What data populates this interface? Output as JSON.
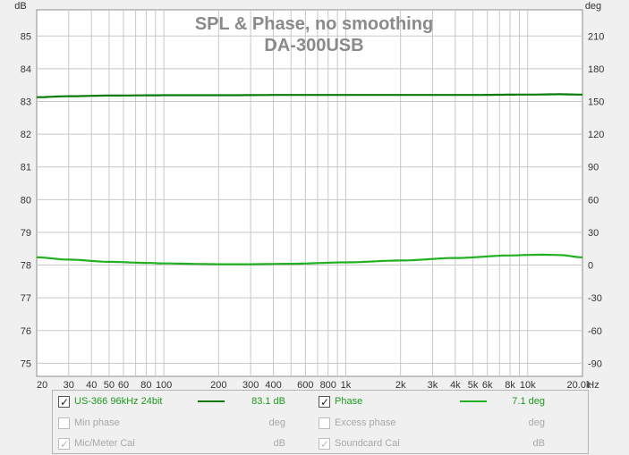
{
  "chart_data": {
    "type": "line",
    "title": "SPL & Phase, no smoothing",
    "subtitle": "DA-300USB",
    "y_left_label": "dB",
    "y_right_label": "deg",
    "x_unit_label": "Hz",
    "x_scale": "log",
    "xlim": [
      20,
      20000
    ],
    "ylim_left": [
      74.6,
      85.8
    ],
    "ylim_right": [
      -102,
      234
    ],
    "x_ticks": [
      {
        "value": 20,
        "label": "20"
      },
      {
        "value": 30,
        "label": "30"
      },
      {
        "value": 40,
        "label": "40"
      },
      {
        "value": 50,
        "label": "50"
      },
      {
        "value": 60,
        "label": "60"
      },
      {
        "value": 80,
        "label": "80"
      },
      {
        "value": 100,
        "label": "100"
      },
      {
        "value": 200,
        "label": "200"
      },
      {
        "value": 300,
        "label": "300"
      },
      {
        "value": 400,
        "label": "400"
      },
      {
        "value": 600,
        "label": "600"
      },
      {
        "value": 800,
        "label": "800"
      },
      {
        "value": 1000,
        "label": "1k"
      },
      {
        "value": 2000,
        "label": "2k"
      },
      {
        "value": 3000,
        "label": "3k"
      },
      {
        "value": 4000,
        "label": "4k"
      },
      {
        "value": 5000,
        "label": "5k"
      },
      {
        "value": 6000,
        "label": "6k"
      },
      {
        "value": 8000,
        "label": "8k"
      },
      {
        "value": 10000,
        "label": "10k"
      },
      {
        "value": 20000,
        "label": "20.0k"
      }
    ],
    "y_left_ticks": [
      75,
      76,
      77,
      78,
      79,
      80,
      81,
      82,
      83,
      84,
      85
    ],
    "y_right_ticks": [
      -90,
      -60,
      -30,
      0,
      30,
      60,
      90,
      120,
      150,
      180,
      210
    ],
    "grid": true,
    "series": [
      {
        "name": "US-366 96kHz 24bit",
        "axis": "left",
        "color": "#0a7a0a",
        "x": [
          20,
          30,
          50,
          100,
          200,
          500,
          1000,
          2000,
          5000,
          10000,
          15000,
          20000
        ],
        "y": [
          83.13,
          83.16,
          83.18,
          83.19,
          83.19,
          83.2,
          83.2,
          83.2,
          83.2,
          83.21,
          83.22,
          83.21
        ]
      },
      {
        "name": "Phase",
        "axis": "right",
        "color": "#22b022",
        "x": [
          20,
          30,
          50,
          80,
          100,
          200,
          300,
          500,
          1000,
          2000,
          4000,
          8000,
          10000,
          12000,
          15000,
          20000
        ],
        "y": [
          7.1,
          5,
          3,
          2,
          1.5,
          0.8,
          0.8,
          1.2,
          2.5,
          4.2,
          6.5,
          8.8,
          9.3,
          9.5,
          9.2,
          7.1
        ]
      }
    ]
  },
  "legend": {
    "rows": [
      {
        "left": {
          "checked": true,
          "enabled": true,
          "label": "US-366 96kHz 24bit",
          "swatch": "#0a7a0a",
          "value": "83.1 dB"
        },
        "right": {
          "checked": true,
          "enabled": true,
          "label": "Phase",
          "swatch": "#22b022",
          "value": "7.1 deg"
        }
      },
      {
        "left": {
          "checked": false,
          "enabled": false,
          "label": "Min phase",
          "swatch": "",
          "value": "deg"
        },
        "right": {
          "checked": false,
          "enabled": false,
          "label": "Excess phase",
          "swatch": "",
          "value": "deg"
        }
      },
      {
        "left": {
          "checked": true,
          "enabled": false,
          "label": "Mic/Meter Cal",
          "swatch": "",
          "value": "dB"
        },
        "right": {
          "checked": true,
          "enabled": false,
          "label": "Soundcard Cal",
          "swatch": "",
          "value": "dB"
        }
      }
    ]
  }
}
